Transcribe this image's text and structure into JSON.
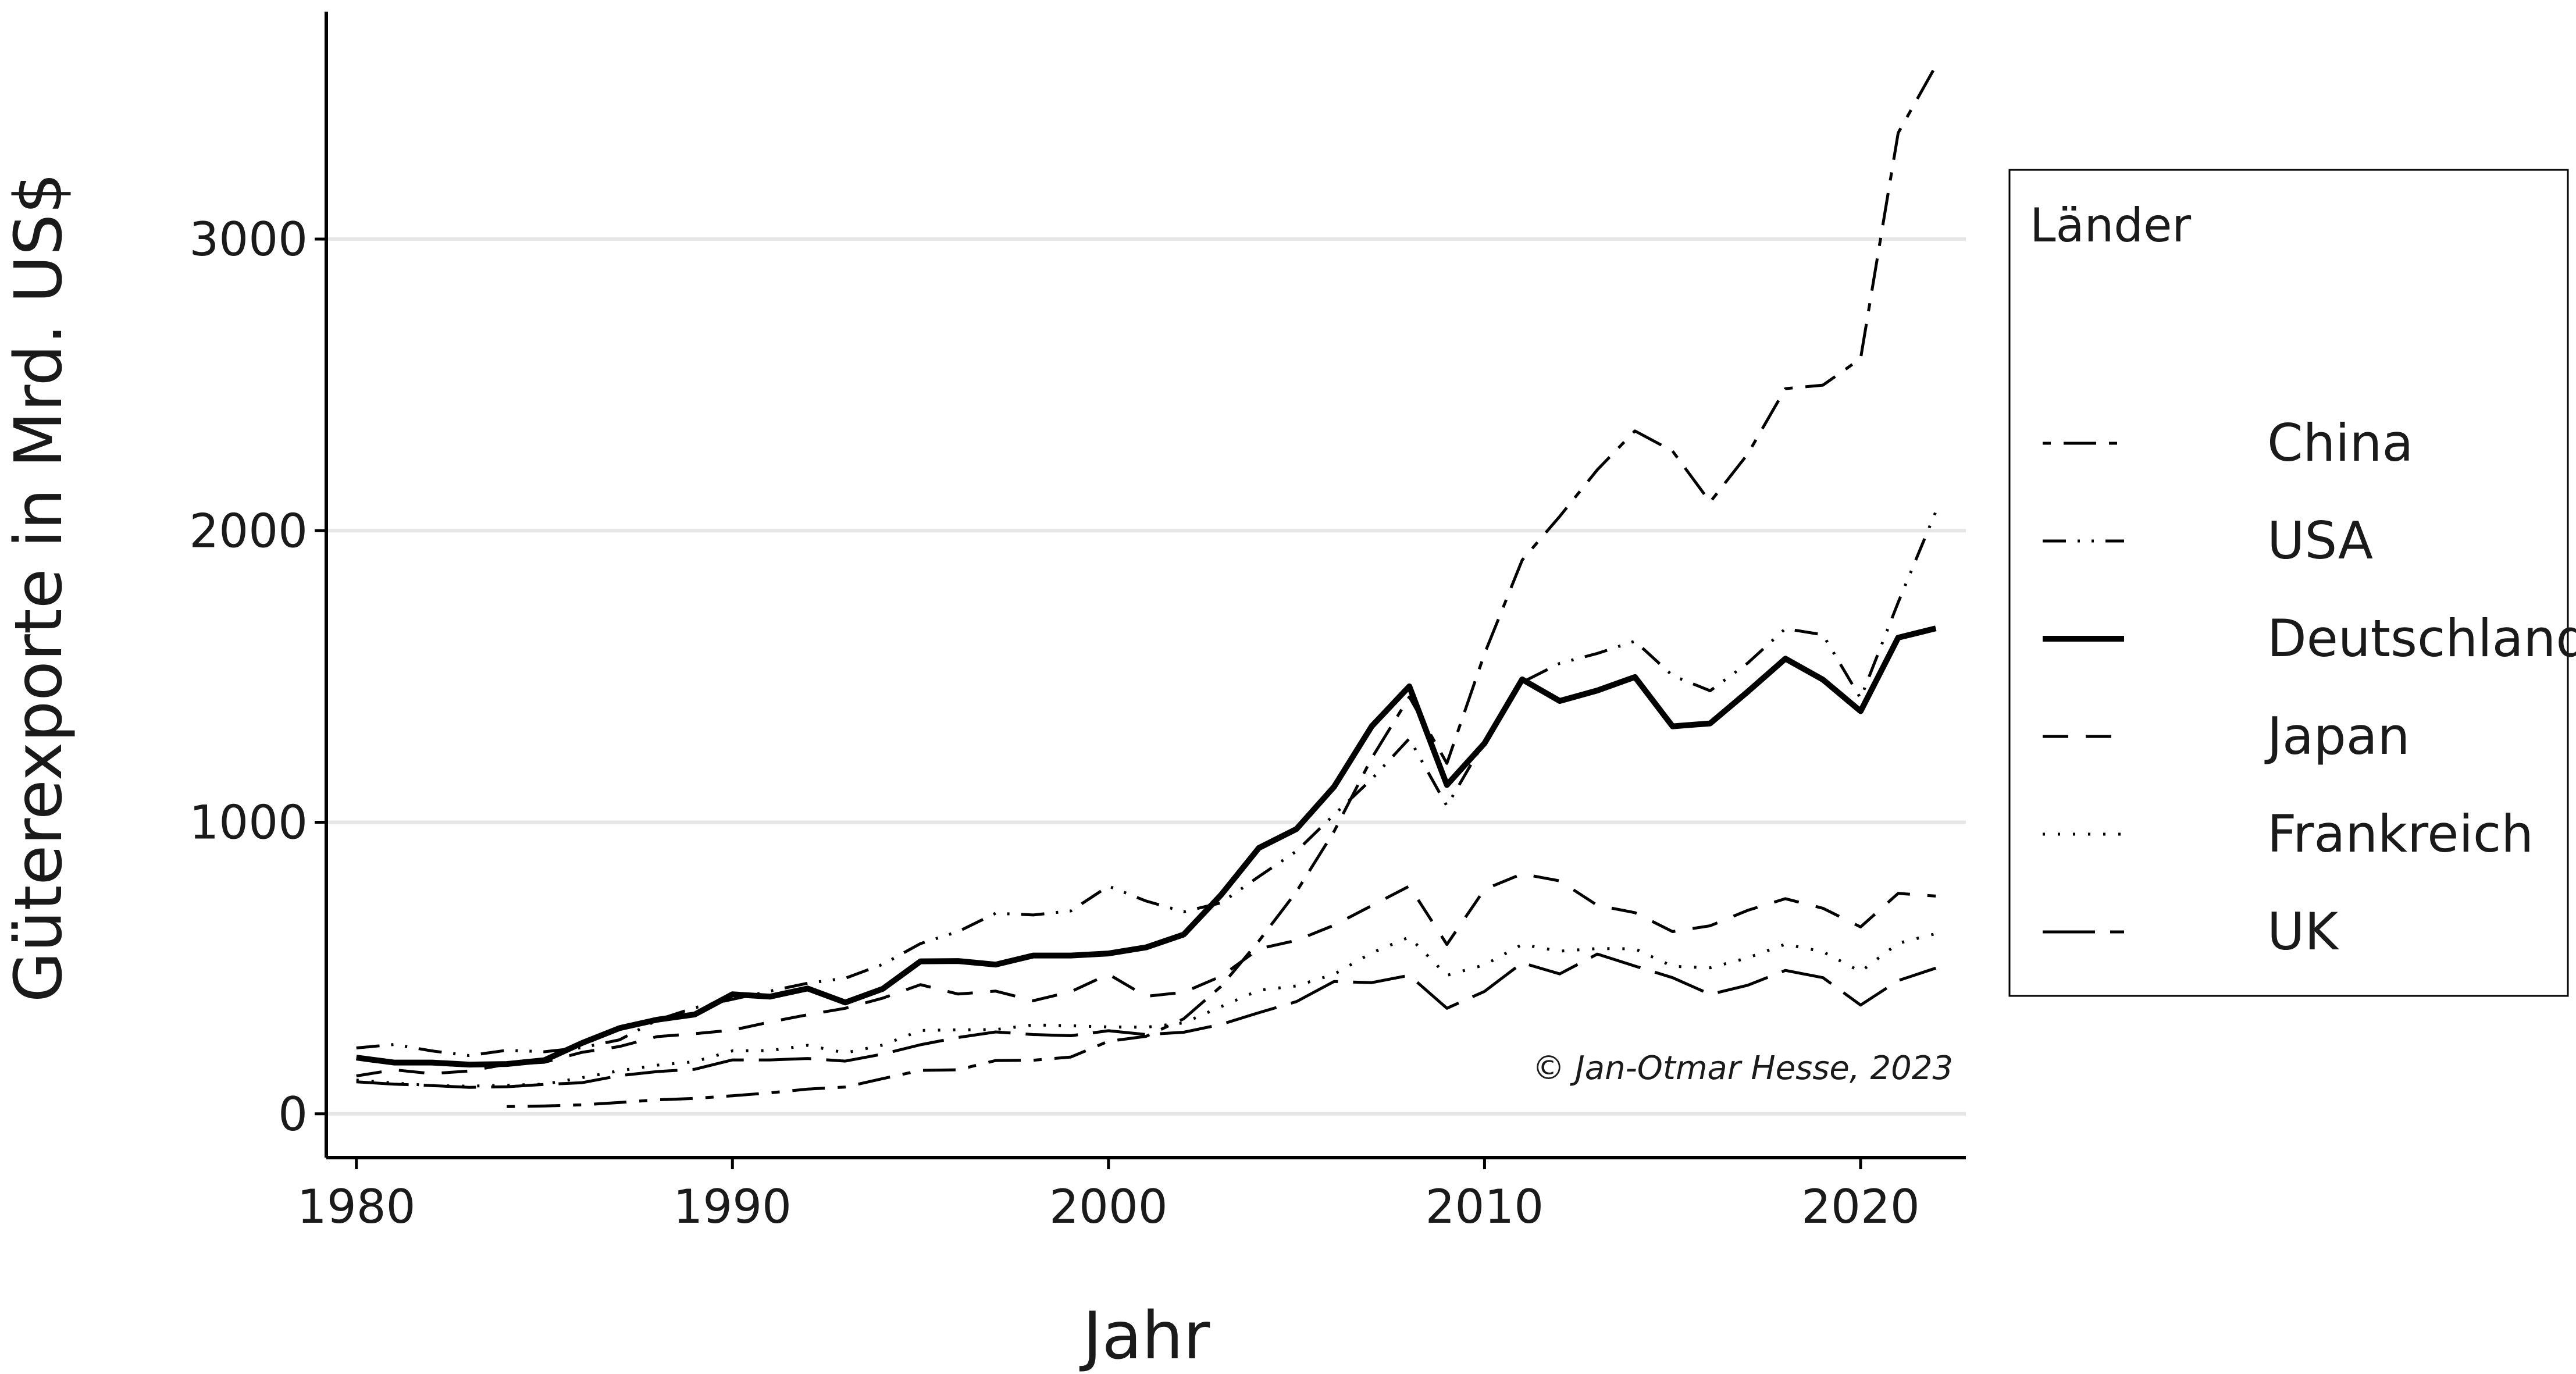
{
  "chart_data": {
    "type": "line",
    "xlabel": "Jahr",
    "ylabel": "Güterexporte in Mrd. US$",
    "xlim": [
      1979.2,
      2022.8
    ],
    "ylim": [
      -150,
      3780
    ],
    "x_ticks": [
      1980,
      1990,
      2000,
      2010,
      2020
    ],
    "x_tick_labels": [
      "1980",
      "1990",
      "2000",
      "2010",
      "2020"
    ],
    "y_ticks": [
      0,
      1000,
      2000,
      3000
    ],
    "y_tick_labels": [
      "0",
      "1000",
      "2000",
      "3000"
    ],
    "grid": "horizontal",
    "legend": {
      "title": "Länder",
      "position": "right"
    },
    "caption": "© Jan-Otmar Hesse, 2023",
    "series": [
      {
        "name": "China",
        "dash": "dashdot",
        "x": [
          1984,
          1985,
          1986,
          1987,
          1988,
          1989,
          1990,
          1991,
          1992,
          1993,
          1994,
          1995,
          1996,
          1997,
          1998,
          1999,
          2000,
          2001,
          2002,
          2003,
          2004,
          2005,
          2006,
          2007,
          2008,
          2009,
          2010,
          2011,
          2012,
          2013,
          2014,
          2015,
          2016,
          2017,
          2018,
          2019,
          2020,
          2021,
          2022
        ],
        "values": [
          25,
          27,
          31,
          39,
          48,
          53,
          62,
          72,
          85,
          92,
          121,
          149,
          151,
          183,
          184,
          195,
          249,
          266,
          326,
          438,
          593,
          762,
          969,
          1220,
          1430,
          1202,
          1578,
          1899,
          2049,
          2209,
          2342,
          2273,
          2098,
          2263,
          2487,
          2499,
          2590,
          3364,
          3594
        ]
      },
      {
        "name": "USA",
        "dash": "dot-dash",
        "x": [
          1980,
          1981,
          1982,
          1983,
          1984,
          1985,
          1986,
          1987,
          1988,
          1989,
          1990,
          1991,
          1992,
          1993,
          1994,
          1995,
          1996,
          1997,
          1998,
          1999,
          2000,
          2001,
          2002,
          2003,
          2004,
          2005,
          2006,
          2007,
          2008,
          2009,
          2010,
          2011,
          2012,
          2013,
          2014,
          2015,
          2016,
          2017,
          2018,
          2019,
          2020,
          2021,
          2022
        ],
        "values": [
          226,
          238,
          216,
          200,
          218,
          213,
          227,
          254,
          322,
          364,
          393,
          421,
          448,
          465,
          513,
          584,
          625,
          688,
          682,
          696,
          781,
          730,
          693,
          724,
          814,
          901,
          1026,
          1148,
          1287,
          1056,
          1278,
          1480,
          1545,
          1579,
          1621,
          1503,
          1451,
          1546,
          1664,
          1643,
          1425,
          1754,
          2065
        ]
      },
      {
        "name": "Deutschland",
        "dash": "solid",
        "x": [
          1980,
          1981,
          1982,
          1983,
          1984,
          1985,
          1986,
          1987,
          1988,
          1989,
          1990,
          1991,
          1992,
          1993,
          1994,
          1995,
          1996,
          1997,
          1998,
          1999,
          2000,
          2001,
          2002,
          2003,
          2004,
          2005,
          2006,
          2007,
          2008,
          2009,
          2010,
          2011,
          2012,
          2013,
          2014,
          2015,
          2016,
          2017,
          2018,
          2019,
          2020,
          2021,
          2022
        ],
        "values": [
          193,
          176,
          176,
          169,
          171,
          184,
          243,
          294,
          323,
          341,
          410,
          402,
          430,
          382,
          429,
          523,
          524,
          512,
          543,
          543,
          550,
          571,
          615,
          752,
          912,
          977,
          1122,
          1329,
          1466,
          1128,
          1271,
          1490,
          1416,
          1452,
          1498,
          1329,
          1339,
          1448,
          1561,
          1489,
          1381,
          1633,
          1665
        ]
      },
      {
        "name": "Japan",
        "dash": "dashed",
        "x": [
          1980,
          1981,
          1982,
          1983,
          1984,
          1985,
          1986,
          1987,
          1988,
          1989,
          1990,
          1991,
          1992,
          1993,
          1994,
          1995,
          1996,
          1997,
          1998,
          1999,
          2000,
          2001,
          2002,
          2003,
          2004,
          2005,
          2006,
          2007,
          2008,
          2009,
          2010,
          2011,
          2012,
          2013,
          2014,
          2015,
          2016,
          2017,
          2018,
          2019,
          2020,
          2021,
          2022
        ],
        "values": [
          130,
          151,
          138,
          147,
          170,
          177,
          211,
          231,
          265,
          275,
          287,
          315,
          340,
          362,
          397,
          443,
          411,
          421,
          388,
          419,
          479,
          403,
          417,
          472,
          566,
          595,
          647,
          714,
          781,
          581,
          770,
          823,
          799,
          715,
          690,
          625,
          645,
          698,
          738,
          705,
          641,
          756,
          747
        ]
      },
      {
        "name": "Frankreich",
        "dash": "dotted",
        "x": [
          1980,
          1981,
          1982,
          1983,
          1984,
          1985,
          1986,
          1987,
          1988,
          1989,
          1990,
          1991,
          1992,
          1993,
          1994,
          1995,
          1996,
          1997,
          1998,
          1999,
          2000,
          2001,
          2002,
          2003,
          2004,
          2005,
          2006,
          2007,
          2008,
          2009,
          2010,
          2011,
          2012,
          2013,
          2014,
          2015,
          2016,
          2017,
          2018,
          2019,
          2020,
          2021,
          2022
        ],
        "values": [
          116,
          106,
          97,
          95,
          98,
          102,
          124,
          148,
          167,
          179,
          216,
          217,
          235,
          209,
          236,
          286,
          288,
          289,
          305,
          302,
          298,
          297,
          312,
          368,
          424,
          439,
          479,
          552,
          606,
          475,
          511,
          581,
          558,
          567,
          566,
          506,
          501,
          535,
          582,
          556,
          488,
          585,
          618
        ]
      },
      {
        "name": "UK",
        "dash": "longdash",
        "x": [
          1980,
          1981,
          1982,
          1983,
          1984,
          1985,
          1986,
          1987,
          1988,
          1989,
          1990,
          1991,
          1992,
          1993,
          1994,
          1995,
          1996,
          1997,
          1998,
          1999,
          2000,
          2001,
          2002,
          2003,
          2004,
          2005,
          2006,
          2007,
          2008,
          2009,
          2010,
          2011,
          2012,
          2013,
          2014,
          2015,
          2016,
          2017,
          2018,
          2019,
          2020,
          2021,
          2022
        ],
        "values": [
          110,
          102,
          97,
          91,
          93,
          101,
          107,
          131,
          145,
          153,
          185,
          185,
          190,
          181,
          205,
          237,
          262,
          281,
          272,
          268,
          285,
          272,
          280,
          307,
          347,
          385,
          454,
          450,
          475,
          362,
          420,
          518,
          480,
          548,
          507,
          467,
          410,
          441,
          492,
          467,
          373,
          457,
          500
        ]
      }
    ]
  }
}
